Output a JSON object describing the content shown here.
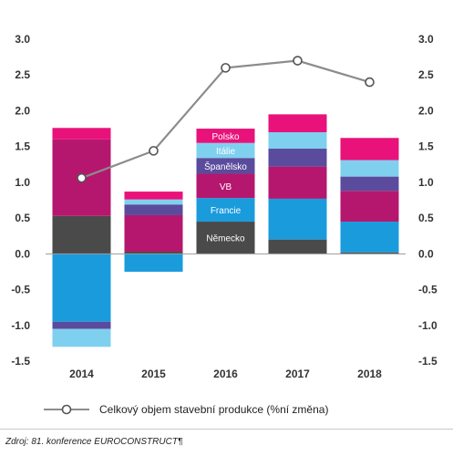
{
  "chart_data": {
    "type": "bar",
    "stacked": true,
    "categories": [
      "2014",
      "2015",
      "2016",
      "2017",
      "2018"
    ],
    "ylim": [
      -1.5,
      3.0
    ],
    "yticks": [
      "3.0",
      "2.5",
      "2.0",
      "1.5",
      "1.0",
      "0.5",
      "0.0",
      "-0.5",
      "-1.0",
      "-1.5"
    ],
    "y2ticks": [
      "3.0",
      "2.5",
      "2.0",
      "1.5",
      "1.0",
      "0.5",
      "0.0",
      "-0.5",
      "-1.0",
      "-1.5"
    ],
    "grid": false,
    "series": [
      {
        "name": "Německo",
        "color": "#4a4a4a",
        "values": [
          0.53,
          0.03,
          0.45,
          0.2,
          0.02
        ]
      },
      {
        "name": "Francie",
        "color": "#1a9bdc",
        "values": [
          -0.95,
          -0.25,
          0.33,
          0.57,
          0.43
        ]
      },
      {
        "name": "VB",
        "color": "#b5176f",
        "values": [
          1.07,
          0.51,
          0.34,
          0.45,
          0.43
        ]
      },
      {
        "name": "Španělsko",
        "color": "#5a4b9c",
        "values": [
          -0.1,
          0.15,
          0.22,
          0.25,
          0.2
        ]
      },
      {
        "name": "Itálie",
        "color": "#7fd0ef",
        "values": [
          -0.25,
          0.07,
          0.21,
          0.23,
          0.23
        ]
      },
      {
        "name": "Polsko",
        "color": "#e8127a",
        "values": [
          0.16,
          0.11,
          0.2,
          0.25,
          0.31
        ]
      }
    ],
    "line_series": {
      "name": "Celkový objem stavební produkce (%ní změna)",
      "color": "#8c8c8c",
      "values": [
        1.06,
        1.44,
        2.6,
        2.7,
        2.4
      ]
    },
    "segment_labels_category": "2016",
    "legend": "bottom"
  },
  "source_note": "Zdroj: 81. konference EUROCONSTRUCT¶"
}
